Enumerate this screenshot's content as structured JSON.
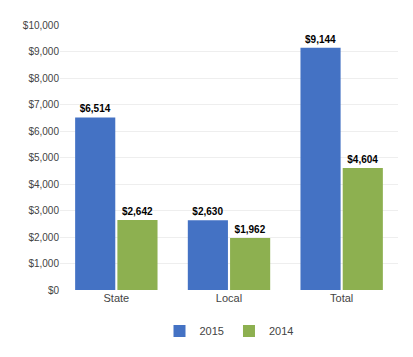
{
  "chart_data": {
    "type": "bar",
    "categories": [
      "State",
      "Local",
      "Total"
    ],
    "series": [
      {
        "name": "2015",
        "color": "#4472C4",
        "values": [
          6514,
          2630,
          9144
        ],
        "value_labels": [
          "$6,514",
          "$2,630",
          "$9,144"
        ]
      },
      {
        "name": "2014",
        "color": "#8DB050",
        "values": [
          2642,
          1962,
          4604
        ],
        "value_labels": [
          "$2,642",
          "$1,962",
          "$4,604"
        ]
      }
    ],
    "ylim": [
      0,
      10000
    ],
    "yticks": [
      {
        "value": 0,
        "label": "$0"
      },
      {
        "value": 1000,
        "label": "$1,000"
      },
      {
        "value": 2000,
        "label": "$2,000"
      },
      {
        "value": 3000,
        "label": "$3,000"
      },
      {
        "value": 4000,
        "label": "$4,000"
      },
      {
        "value": 5000,
        "label": "$5,000"
      },
      {
        "value": 6000,
        "label": "$6,000"
      },
      {
        "value": 7000,
        "label": "$7,000"
      },
      {
        "value": 8000,
        "label": "$8,000"
      },
      {
        "value": 9000,
        "label": "$9,000"
      },
      {
        "value": 10000,
        "label": "$10,000"
      }
    ],
    "grid": true,
    "legend": "bottom",
    "data_labels": true
  }
}
